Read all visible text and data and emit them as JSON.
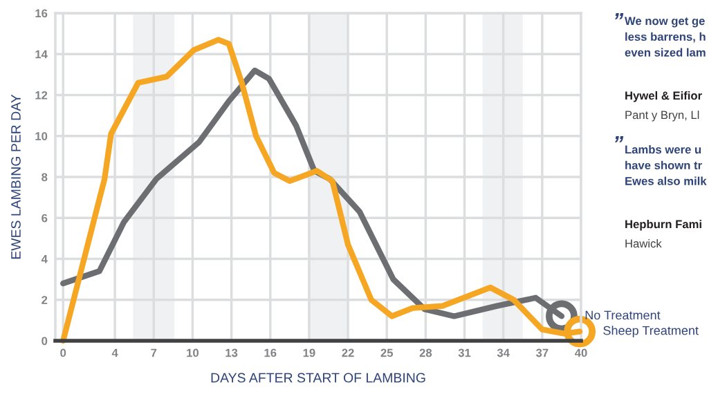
{
  "chart_data": {
    "type": "line",
    "xlabel": "DAYS AFTER START OF LAMBING",
    "ylabel": "EWES LAMBING PER DAY",
    "xlim": [
      -0.6,
      40
    ],
    "xticks": [
      0,
      4,
      7,
      10,
      13,
      16,
      19,
      22,
      25,
      28,
      31,
      34,
      37,
      40
    ],
    "ylim": [
      0,
      16
    ],
    "yticks": [
      0,
      2,
      4,
      6,
      8,
      10,
      12,
      14,
      16
    ],
    "grid": true,
    "legend": false,
    "marker": "none",
    "line_style": "solid",
    "bands": [
      {
        "axis": "x",
        "from": 5.4,
        "to": 8.6,
        "color": "#f0f1f3"
      },
      {
        "axis": "x",
        "from": 19,
        "to": 22,
        "color": "#f0f1f3"
      },
      {
        "axis": "x",
        "from": 32.4,
        "to": 35.5,
        "color": "#f0f1f3"
      }
    ],
    "series": [
      {
        "name": "No Treatment",
        "color": "#6d6e71",
        "x": [
          0,
          2.8,
          4.7,
          7.2,
          10.5,
          12.8,
          14.8,
          15.9,
          18,
          19.4,
          20.6,
          22.9,
          25.5,
          27.9,
          30.2,
          33.5,
          36.5,
          38.5
        ],
        "values": [
          2.8,
          3.4,
          5.8,
          7.9,
          9.7,
          11.7,
          13.2,
          12.8,
          10.5,
          8.3,
          7.9,
          6.3,
          3.0,
          1.55,
          1.2,
          1.7,
          2.1,
          1.2
        ]
      },
      {
        "name": "Sheep Treatment",
        "color": "#f5a623",
        "x": [
          0,
          3.2,
          3.7,
          5.8,
          8,
          10.1,
          12,
          12.8,
          13.8,
          14.9,
          16.3,
          17.5,
          19.6,
          20.8,
          22,
          23.8,
          25.4,
          27,
          29.3,
          33,
          34.8,
          37,
          38.7,
          39.9
        ],
        "values": [
          0,
          7.9,
          10.1,
          12.6,
          12.9,
          14.2,
          14.7,
          14.5,
          12.6,
          10.0,
          8.2,
          7.8,
          8.3,
          7.8,
          4.7,
          2.0,
          1.2,
          1.6,
          1.7,
          2.6,
          2.0,
          0.55,
          0.35,
          0.45
        ]
      }
    ],
    "annotations": [
      "”",
      "We now get ge\nless barrens, h\neven sized lam",
      "Hywel & Eifior",
      "Pant y Bryn, Ll",
      "”",
      "Lambs were u\nhave shown tr\nEwes also milk",
      "Hepburn Fami",
      "Hawick"
    ]
  }
}
